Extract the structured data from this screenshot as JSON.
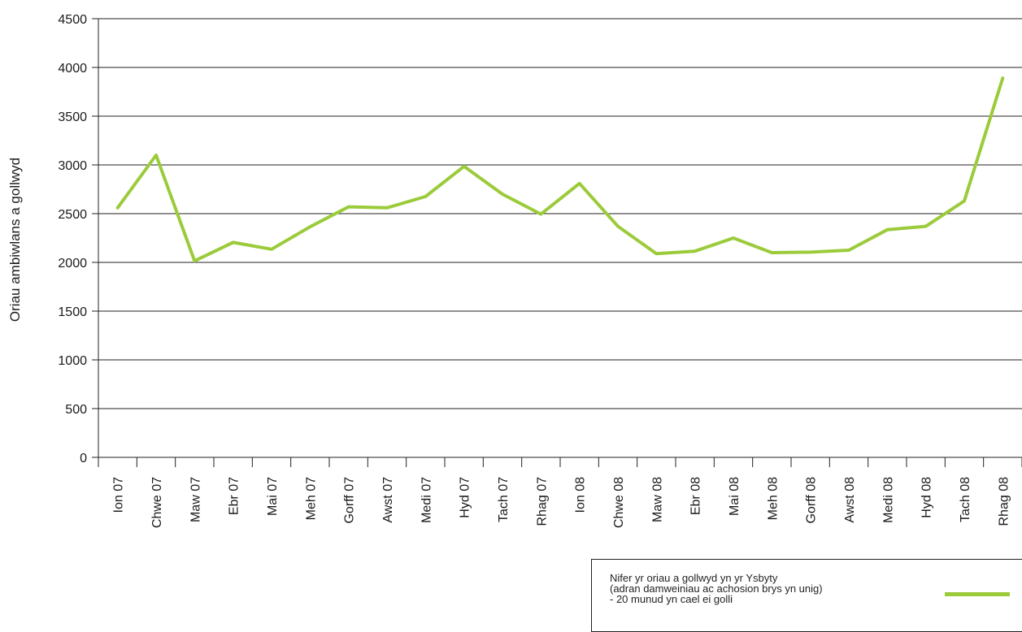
{
  "chart_data": {
    "type": "line",
    "title": "",
    "xlabel": "",
    "ylabel": "Oriau ambiwlans a gollwyd",
    "ylim": [
      0,
      4500
    ],
    "yticks": [
      "0",
      "500",
      "1000",
      "1500",
      "2000",
      "2500",
      "3000",
      "3500",
      "4000",
      "4500"
    ],
    "grid": true,
    "legend_position": "bottom-right",
    "categories": [
      "Ion 07",
      "Chwe 07",
      "Maw 07",
      "Ebr 07",
      "Mai 07",
      "Meh 07",
      "Gorff 07",
      "Awst 07",
      "Medi 07",
      "Hyd 07",
      "Tach 07",
      "Rhag 07",
      "Ion 08",
      "Chwe 08",
      "Maw 08",
      "Ebr 08",
      "Mai 08",
      "Meh 08",
      "Gorff 08",
      "Awst 08",
      "Medi 08",
      "Hyd 08",
      "Tach 08",
      "Rhag 08"
    ],
    "series": [
      {
        "name_lines": [
          "Nifer yr oriau a gollwyd yn yr Ysbyty",
          "(adran damweiniau ac achosion brys yn unig)",
          "- 20 munud yn cael ei golli"
        ],
        "color": "#9bcb3b",
        "values": [
          2560,
          3100,
          2015,
          2205,
          2135,
          2365,
          2570,
          2560,
          2675,
          2985,
          2700,
          2495,
          2810,
          2370,
          2090,
          2115,
          2250,
          2100,
          2105,
          2125,
          2335,
          2370,
          2630,
          3890
        ]
      }
    ]
  }
}
